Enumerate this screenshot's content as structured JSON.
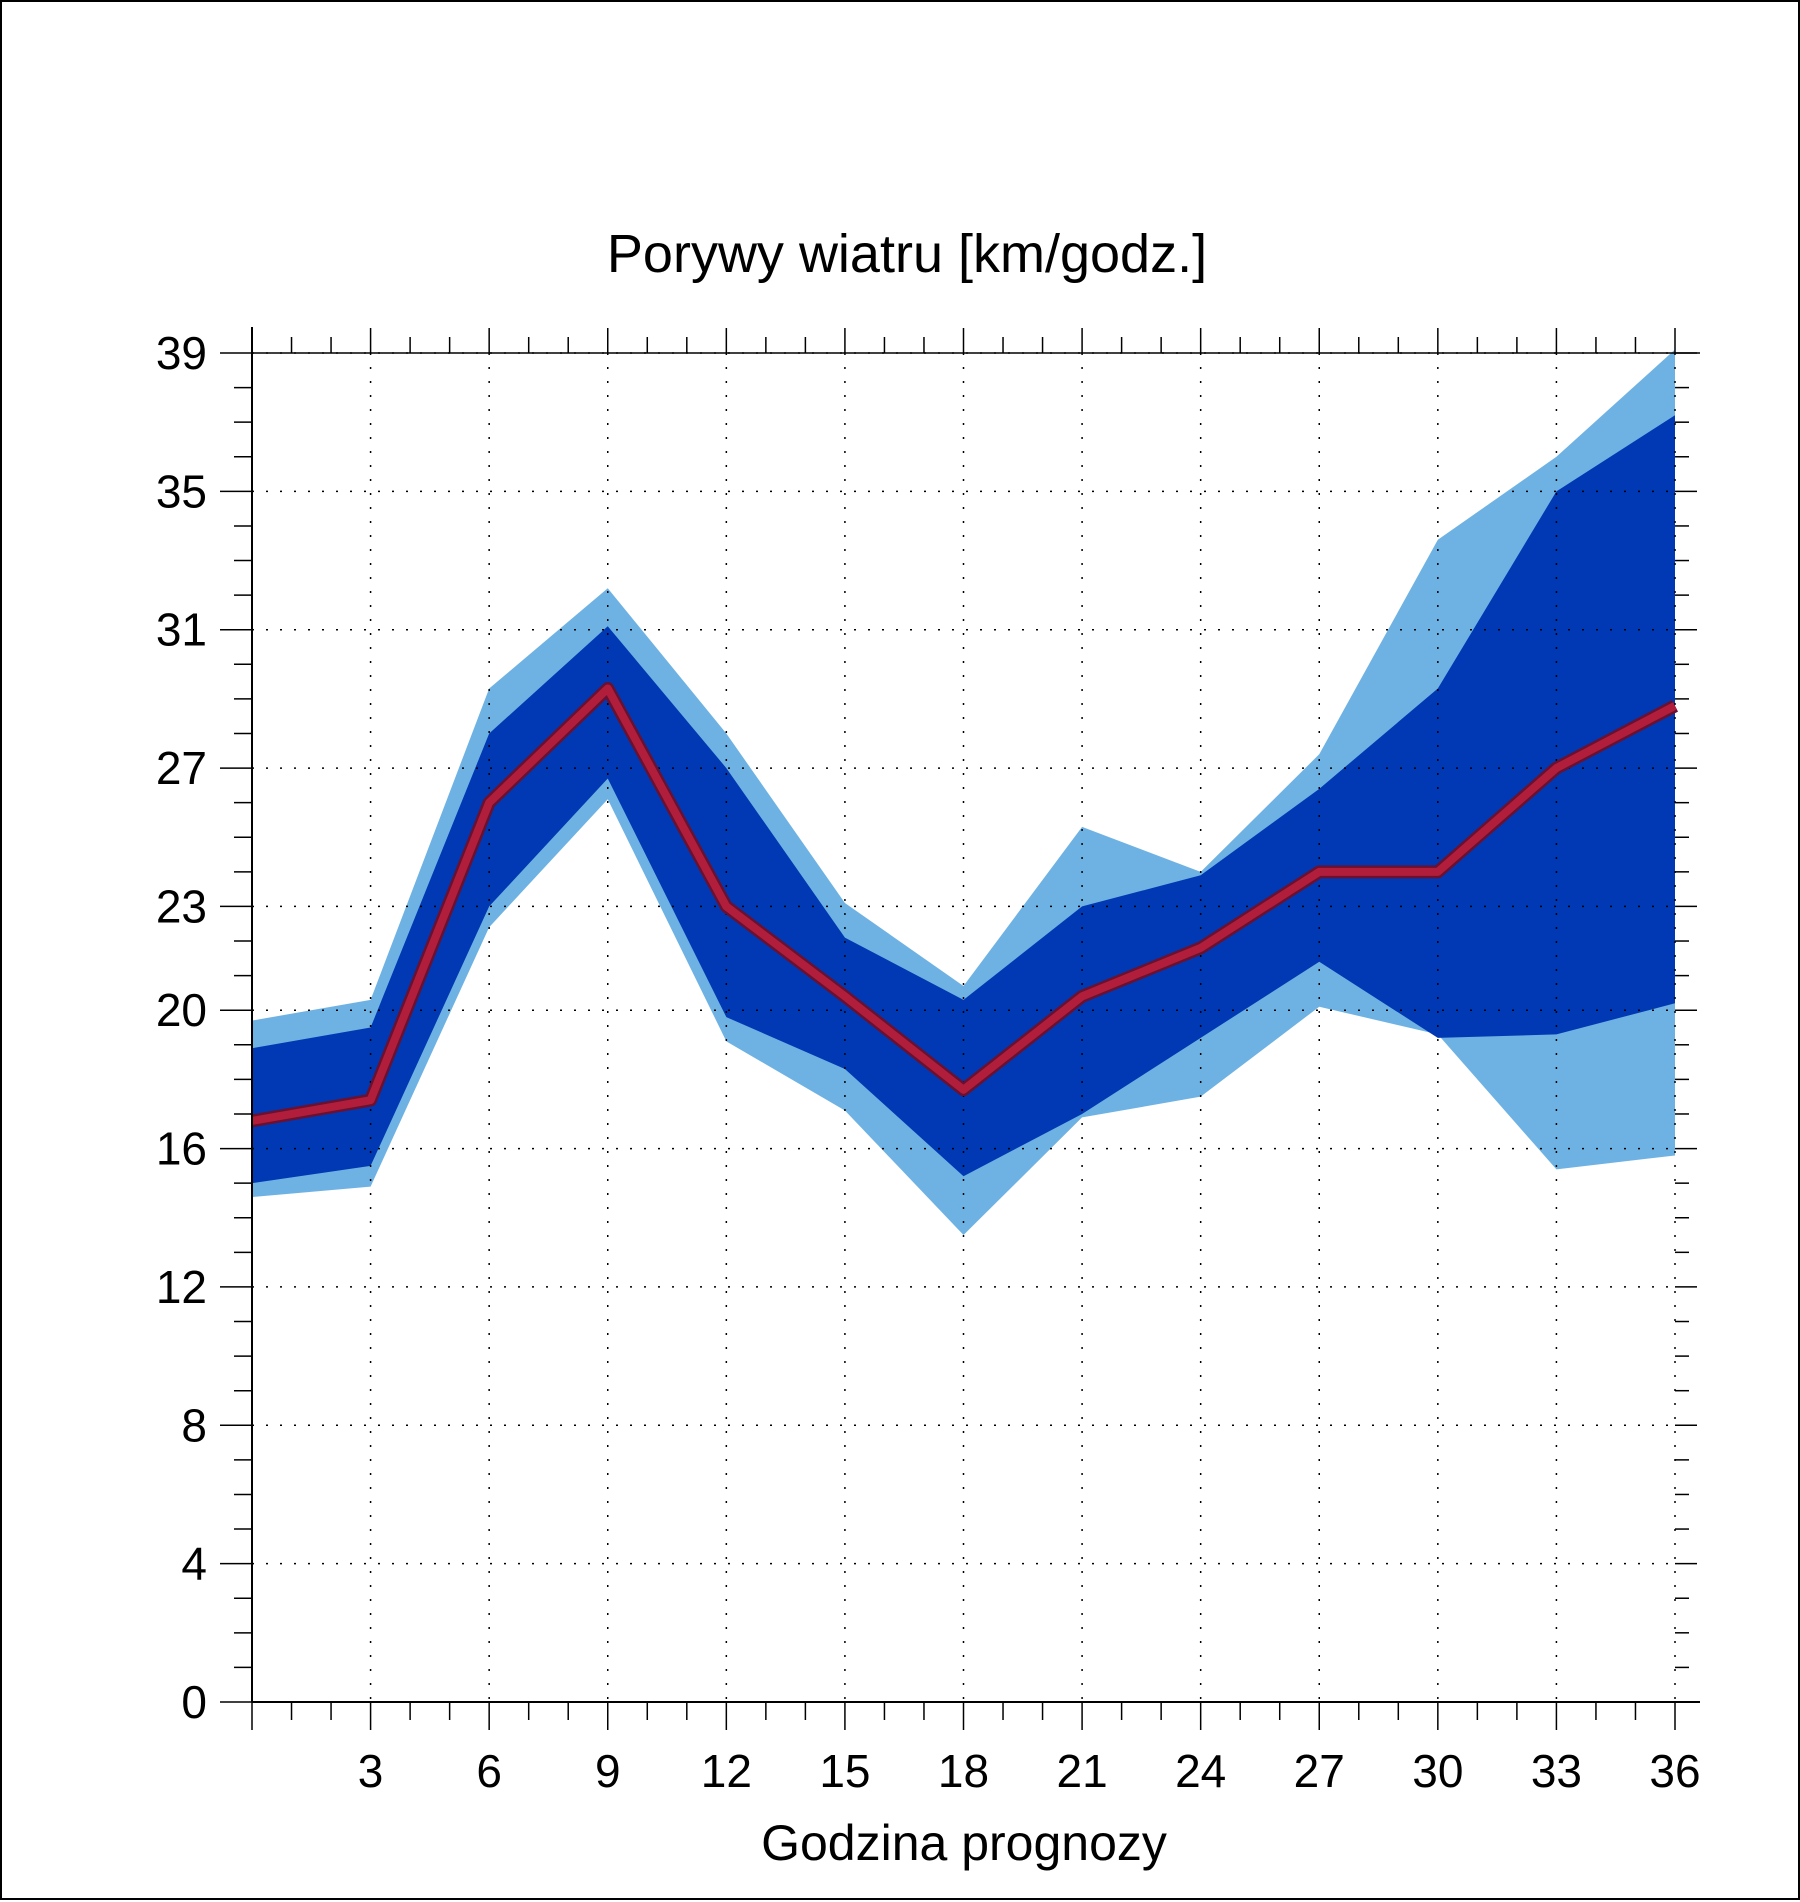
{
  "chart_data": {
    "type": "area",
    "title": "Porywy wiatru [km/godz.]",
    "xlabel": "Godzina prognozy",
    "ylabel": "",
    "xlim": [
      0,
      36
    ],
    "ylim": [
      0,
      40
    ],
    "x": [
      0,
      3,
      6,
      9,
      12,
      15,
      18,
      21,
      24,
      27,
      30,
      33,
      36
    ],
    "xticks": [
      3,
      6,
      9,
      12,
      15,
      18,
      21,
      24,
      27,
      30,
      33,
      36
    ],
    "yticks": [
      0,
      4,
      8,
      12,
      16,
      20,
      23,
      27,
      31,
      35,
      39
    ],
    "grid": "dotted",
    "series": [
      {
        "role": "outer-band",
        "color": "#6eb2e4",
        "upper": [
          19.7,
          20.3,
          29.3,
          32.2,
          28.0,
          23.1,
          20.7,
          25.3,
          24.0,
          27.4,
          33.6,
          36.0,
          39.1
        ],
        "lower": [
          14.6,
          14.9,
          22.4,
          26.1,
          19.1,
          17.1,
          13.5,
          16.9,
          17.5,
          20.1,
          19.3,
          15.4,
          15.8
        ]
      },
      {
        "role": "inner-band",
        "color": "#0039b3",
        "upper": [
          18.9,
          19.5,
          28.0,
          31.1,
          27.0,
          22.1,
          20.3,
          23.0,
          23.9,
          26.4,
          29.3,
          35.0,
          37.2
        ],
        "lower": [
          15.0,
          15.5,
          23.0,
          26.7,
          19.8,
          18.3,
          15.2,
          17.0,
          19.2,
          21.4,
          19.2,
          19.3,
          20.2
        ]
      },
      {
        "role": "median-line",
        "color": "#b01e3c",
        "values": [
          16.8,
          17.4,
          26.0,
          29.3,
          23.0,
          20.4,
          17.7,
          20.4,
          21.8,
          24.0,
          24.0,
          27.0,
          28.8
        ]
      }
    ]
  }
}
